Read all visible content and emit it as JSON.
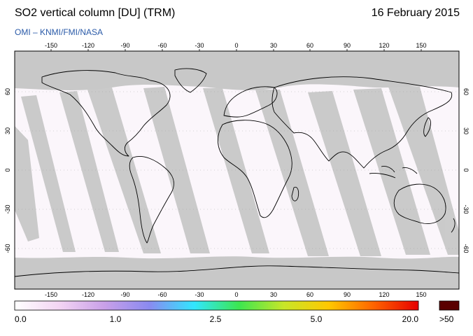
{
  "header": {
    "title": "SO2 vertical column [DU] (TRM)",
    "date": "16 February 2015",
    "credit": "OMI  –  KNMI/FMI/NASA"
  },
  "map": {
    "lon_ticks": [
      "-150",
      "-120",
      "-90",
      "-60",
      "-30",
      "0",
      "30",
      "60",
      "90",
      "120",
      "150"
    ],
    "lat_ticks": [
      "60",
      "30",
      "0",
      "-30",
      "-60"
    ],
    "colors": {
      "no_data": "#c8c8c8",
      "land_outline": "#000000",
      "low_value": "#fbf6fb",
      "frame": "#000000"
    }
  },
  "colorbar": {
    "labels": [
      "0.0",
      "1.0",
      "2.5",
      "5.0",
      "20.0",
      ">50"
    ],
    "over_color": "#5a0000",
    "stops": [
      "#ffffff",
      "#f3d4f3",
      "#c9a0e8",
      "#8a8af0",
      "#32e6ff",
      "#3ce650",
      "#c8e628",
      "#ffc800",
      "#ff6400",
      "#e60000"
    ]
  }
}
